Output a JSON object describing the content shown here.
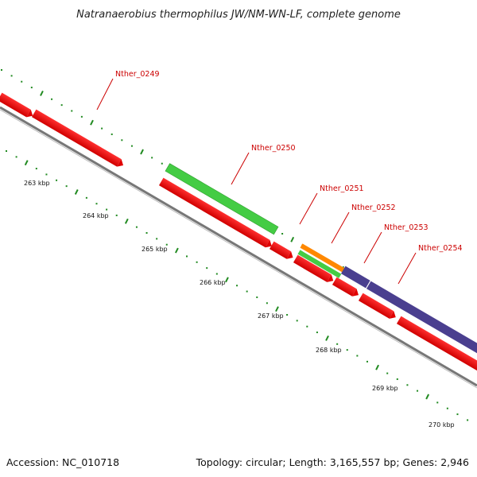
{
  "title": "Natranaerobius thermophilus JW/NM-WN-LF, complete genome",
  "footer": {
    "accession": "Accession: NC_010718",
    "stats": "Topology: circular; Length: 3,165,557 bp; Genes: 2,946"
  },
  "colors": {
    "forward_cds": "#ff0000",
    "reverse_cds": "#ff0000",
    "green_feature": "#44cc44",
    "orange_feature": "#ff8800",
    "purple_feature": "#4a3f8f",
    "backbone": "#888888",
    "tick_dots": "#228b22",
    "label": "#cc0000"
  },
  "scale_labels": [
    "263 kbp",
    "264 kbp",
    "265 kbp",
    "266 kbp",
    "267 kbp",
    "268 kbp",
    "269 kbp",
    "270 kbp"
  ],
  "genes": [
    {
      "name": "Nther_0249",
      "color": "red"
    },
    {
      "name": "Nther_0250",
      "color": "green"
    },
    {
      "name": "Nther_0251",
      "color": "red"
    },
    {
      "name": "Nther_0252",
      "color": "orange"
    },
    {
      "name": "Nther_0253",
      "color": "green"
    },
    {
      "name": "Nther_0254",
      "color": "purple"
    }
  ]
}
